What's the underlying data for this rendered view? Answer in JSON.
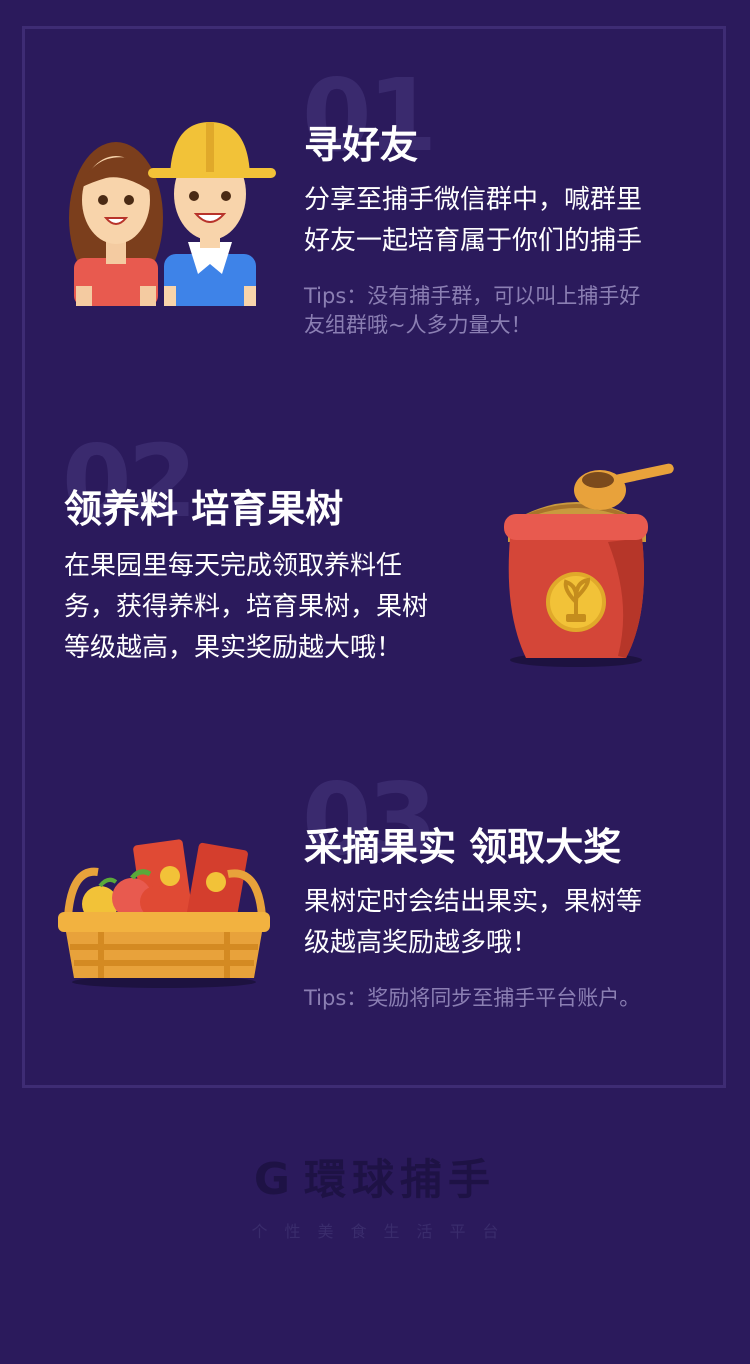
{
  "steps": [
    {
      "number": "01",
      "title": "寻好友",
      "desc_lines": [
        "分享至捕手微信群中，喊群里",
        "好友一起培育属于你们的捕手"
      ],
      "tips_lines": [
        "Tips：没有捕手群，可以叫上捕手好",
        "友组群哦~人多力量大！"
      ]
    },
    {
      "number": "02",
      "title": "领养料  培育果树",
      "desc_lines": [
        "在果园里每天完成领取养料任",
        "务，获得养料，培育果树，果树",
        "等级越高，果实奖励越大哦！"
      ]
    },
    {
      "number": "03",
      "title": "采摘果实  领取大奖",
      "desc_lines": [
        "果树定时会结出果实，果树等",
        "级越高奖励越多哦！"
      ],
      "tips_lines": [
        "Tips：奖励将同步至捕手平台账户。"
      ]
    }
  ],
  "footer": {
    "logo_text": "環球捕手",
    "logo_mark": "G",
    "slogan": "个性美食生活平台"
  },
  "colors": {
    "background": "#2b1a5c",
    "frame": "#3e2c74",
    "number_watermark": "#3a2a6e",
    "tips": "#8b7fb3"
  },
  "icons": [
    "friends-illustration",
    "fertilizer-sack-illustration",
    "fruit-basket-illustration",
    "brand-logo-icon"
  ]
}
